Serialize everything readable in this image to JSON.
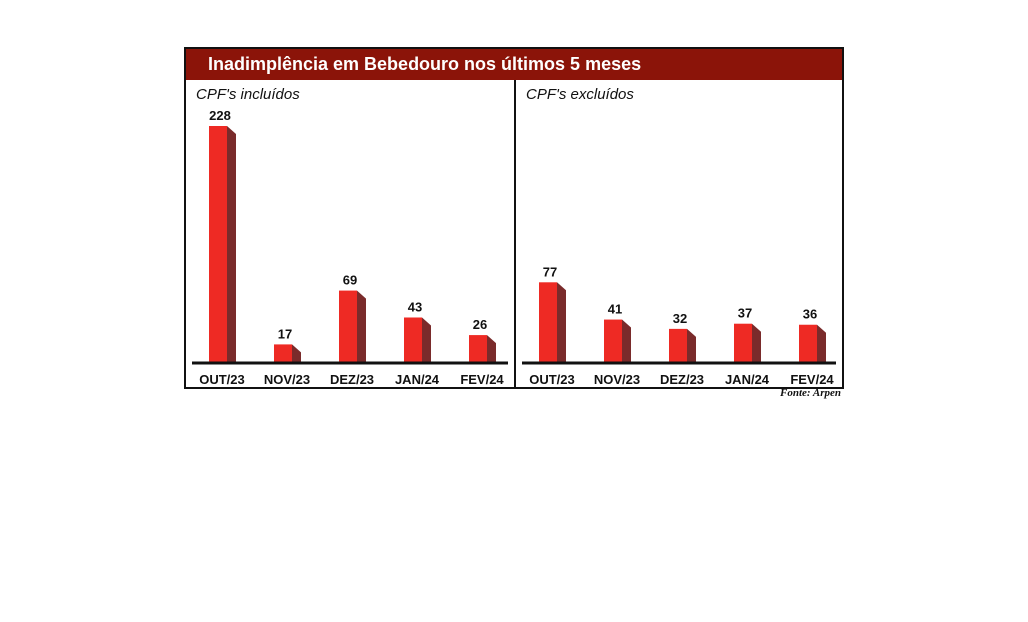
{
  "header": {
    "title": "Inadimplência em Bebedouro nos últimos 5 meses"
  },
  "source": "Fonte: Arpen",
  "colors": {
    "bar_front": "#ee2a24",
    "bar_side": "#7a2b2b",
    "title_bg": "#8b1409"
  },
  "chart_data": [
    {
      "type": "bar",
      "title": "CPF's incluídos",
      "categories": [
        "OUT/23",
        "NOV/23",
        "DEZ/23",
        "JAN/24",
        "FEV/24"
      ],
      "values": [
        228,
        17,
        69,
        43,
        26
      ],
      "ylim": [
        0,
        228
      ],
      "grid": false,
      "legend": "none"
    },
    {
      "type": "bar",
      "title": "CPF's excluídos",
      "categories": [
        "OUT/23",
        "NOV/23",
        "DEZ/23",
        "JAN/24",
        "FEV/24"
      ],
      "values": [
        77,
        41,
        32,
        37,
        36
      ],
      "ylim": [
        0,
        228
      ],
      "grid": false,
      "legend": "none"
    }
  ]
}
